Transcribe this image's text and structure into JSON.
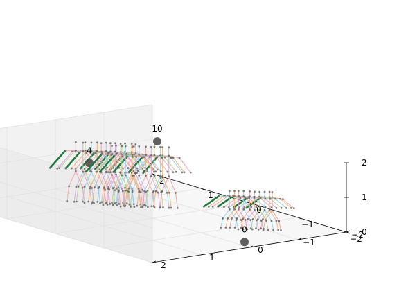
{
  "chart_data": {
    "type": "scatter",
    "projection": "3d",
    "title": "",
    "xlabel": "",
    "ylabel": "",
    "zlabel": "",
    "grid": true,
    "xlim": [
      -2,
      2
    ],
    "ylim": [
      -2,
      2
    ],
    "zlim": [
      0,
      2
    ],
    "x_ticks": [
      "2",
      "1",
      "0",
      "−1",
      "−2"
    ],
    "y_ticks": [
      "2",
      "1",
      "0",
      "−1",
      "−2"
    ],
    "z_ticks": [
      "0",
      "1",
      "2"
    ],
    "skeleton_colors": [
      "#e8a0a8",
      "#f2b36a",
      "#8fd3e8",
      "#b8d08a",
      "#d7a6e0",
      "#f4a6a6",
      "#a6c8f4"
    ],
    "highlight_color": "#1e7a3a",
    "marker_color": "#555555",
    "series": [
      {
        "name": "",
        "label": "4",
        "frames": 13,
        "label_pos": {
          "x": 1.5,
          "y": -0.2,
          "z": 1.2
        },
        "figure": {
          "x": 1.0,
          "y": 0.0,
          "height": 1.75
        }
      },
      {
        "name": "",
        "label": "10",
        "frames": 13,
        "label_pos": {
          "x": 0.9,
          "y": -1.0,
          "z": 1.9
        },
        "figure": {
          "x": 0.6,
          "y": -0.3,
          "height": 1.75
        }
      },
      {
        "name": "",
        "label": "0",
        "frames": 10,
        "label_pos": {
          "x": -1.6,
          "y": -0.3,
          "z": 0.2
        },
        "figure": {
          "x": -1.2,
          "y": -0.8,
          "height": 1.1
        }
      }
    ]
  }
}
